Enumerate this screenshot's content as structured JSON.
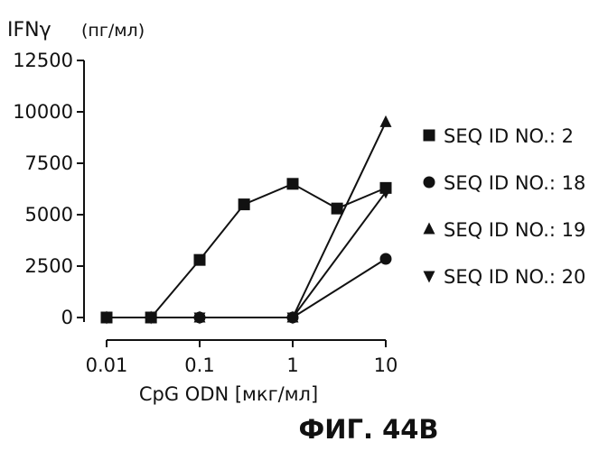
{
  "chart_data": {
    "type": "line",
    "ylabel_main": "IFNγ",
    "ylabel_unit": "(пг/мл)",
    "xlabel": "CpG ODN [мкг/мл]",
    "x_scale": "log",
    "xlim": [
      0.01,
      10
    ],
    "ylim": [
      0,
      12500
    ],
    "x_ticks": [
      0.01,
      0.1,
      1,
      10
    ],
    "x_tick_labels": [
      "0.01",
      "0.1",
      "1",
      "10"
    ],
    "y_ticks": [
      0,
      2500,
      5000,
      7500,
      10000,
      12500
    ],
    "y_tick_labels": [
      "0",
      "2500",
      "5000",
      "7500",
      "10000",
      "12500"
    ],
    "grid": false,
    "legend_position": "right",
    "series": [
      {
        "name": "SEQ ID NO.: 2",
        "marker": "square",
        "x": [
          0.01,
          0.03,
          0.1,
          0.3,
          1,
          3,
          10
        ],
        "y": [
          0,
          0,
          2800,
          5500,
          6500,
          5300,
          6300
        ]
      },
      {
        "name": "SEQ ID NO.: 18",
        "marker": "circle",
        "x": [
          0.01,
          0.03,
          0.1,
          1,
          10
        ],
        "y": [
          0,
          0,
          0,
          0,
          2850
        ]
      },
      {
        "name": "SEQ ID NO.: 19",
        "marker": "triangle-up",
        "x": [
          0.01,
          0.03,
          0.1,
          1,
          10
        ],
        "y": [
          0,
          0,
          0,
          0,
          9500
        ]
      },
      {
        "name": "SEQ ID NO.: 20",
        "marker": "triangle-down",
        "x": [
          0.01,
          0.03,
          0.1,
          1,
          10
        ],
        "y": [
          0,
          0,
          0,
          0,
          6100
        ]
      }
    ]
  },
  "figure_label": "ФИГ. 44В"
}
